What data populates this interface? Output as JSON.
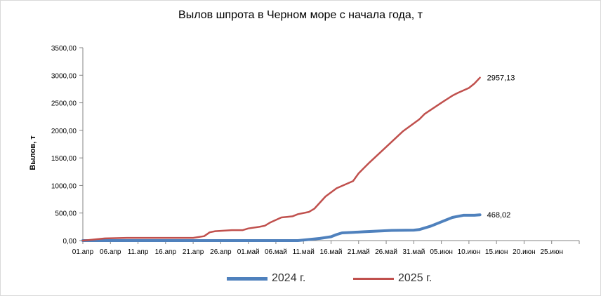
{
  "chart_data": {
    "type": "line",
    "title": "Вылов шпрота в Черном море с начала года, т",
    "ylabel": "Вылов, т",
    "xlabel": "",
    "ylim": [
      0,
      3500
    ],
    "y_ticks": [
      "0,00",
      "500,00",
      "1000,00",
      "1500,00",
      "2000,00",
      "2500,00",
      "3000,00",
      "3500,00"
    ],
    "x_ticks": [
      "01.апр",
      "06.апр",
      "11.апр",
      "16.апр",
      "21.апр",
      "26.апр",
      "01.май",
      "06.май",
      "11.май",
      "16.май",
      "21.май",
      "26.май",
      "31.май",
      "05.июн",
      "10.июн",
      "15.июн",
      "20.июн",
      "25.июн"
    ],
    "grid": false,
    "legend_position": "bottom",
    "series": [
      {
        "name": "2024 г.",
        "color": "#4f81bd",
        "end_label": "468,02",
        "x": [
          "01.апр",
          "10.май",
          "14.май",
          "16.май",
          "17.май",
          "18.май",
          "20.май",
          "22.май",
          "25.май",
          "27.май",
          "31.май",
          "01.июн",
          "03.июн",
          "05.июн",
          "07.июн",
          "09.июн",
          "10.июн",
          "11.июн",
          "12.июн"
        ],
        "values": [
          0,
          0,
          40,
          70,
          110,
          140,
          150,
          160,
          175,
          185,
          190,
          200,
          260,
          340,
          420,
          460,
          460,
          460,
          468.02
        ]
      },
      {
        "name": "2025 г.",
        "color": "#c0504d",
        "end_label": "2957,13",
        "x": [
          "01.апр",
          "02.апр",
          "05.апр",
          "09.апр",
          "21.апр",
          "23.апр",
          "24.апр",
          "25.апр",
          "28.апр",
          "30.апр",
          "01.май",
          "03.май",
          "04.май",
          "05.май",
          "07.май",
          "08.май",
          "09.май",
          "10.май",
          "12.май",
          "13.май",
          "15.май",
          "17.май",
          "20.май",
          "21.май",
          "22.май",
          "23.май",
          "26.май",
          "29.май",
          "01.июн",
          "02.июн",
          "05.июн",
          "07.июн",
          "08.июн",
          "10.июн",
          "11.июн",
          "12.июн"
        ],
        "values": [
          0,
          10,
          40,
          50,
          50,
          80,
          150,
          170,
          190,
          190,
          220,
          250,
          270,
          330,
          420,
          430,
          440,
          480,
          520,
          580,
          800,
          950,
          1080,
          1220,
          1320,
          1420,
          1700,
          1980,
          2200,
          2300,
          2500,
          2630,
          2680,
          2770,
          2850,
          2957.13
        ]
      }
    ]
  }
}
